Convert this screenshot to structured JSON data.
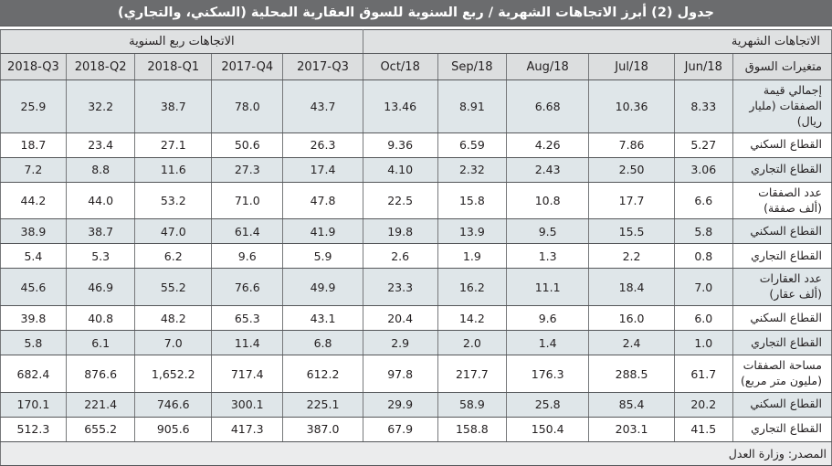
{
  "title": "جدول (2) أبرز الاتجاهات الشهرية / ربع السنوية للسوق العقارية المحلية (السكني، والتجاري)",
  "sections": {
    "monthly": "الاتجاهات الشهرية",
    "quarterly": "الاتجاهات ربع السنوية"
  },
  "row_header_label": "متغيرات السوق",
  "columns_quarterly": [
    "2018-Q3",
    "2018-Q2",
    "2018-Q1",
    "2017-Q4",
    "2017-Q3"
  ],
  "columns_monthly": [
    "Oct/18",
    "Sep/18",
    "Aug/18",
    "Jul/18",
    "Jun/18"
  ],
  "rows": [
    {
      "label": "إجمالي قيمة الصفقات (مليار ريال)",
      "quarterly": [
        "25.9",
        "32.2",
        "38.7",
        "78.0",
        "43.7"
      ],
      "monthly": [
        "13.46",
        "8.91",
        "6.68",
        "10.36",
        "8.33"
      ]
    },
    {
      "label": "القطاع السكني",
      "quarterly": [
        "18.7",
        "23.4",
        "27.1",
        "50.6",
        "26.3"
      ],
      "monthly": [
        "9.36",
        "6.59",
        "4.26",
        "7.86",
        "5.27"
      ]
    },
    {
      "label": "القطاع التجاري",
      "quarterly": [
        "7.2",
        "8.8",
        "11.6",
        "27.3",
        "17.4"
      ],
      "monthly": [
        "4.10",
        "2.32",
        "2.43",
        "2.50",
        "3.06"
      ]
    },
    {
      "label": "عدد الصفقات (ألف صفقة)",
      "quarterly": [
        "44.2",
        "44.0",
        "53.2",
        "71.0",
        "47.8"
      ],
      "monthly": [
        "22.5",
        "15.8",
        "10.8",
        "17.7",
        "6.6"
      ]
    },
    {
      "label": "القطاع السكني",
      "quarterly": [
        "38.9",
        "38.7",
        "47.0",
        "61.4",
        "41.9"
      ],
      "monthly": [
        "19.8",
        "13.9",
        "9.5",
        "15.5",
        "5.8"
      ]
    },
    {
      "label": "القطاع التجاري",
      "quarterly": [
        "5.4",
        "5.3",
        "6.2",
        "9.6",
        "5.9"
      ],
      "monthly": [
        "2.6",
        "1.9",
        "1.3",
        "2.2",
        "0.8"
      ]
    },
    {
      "label": "عدد العقارات (ألف عقار)",
      "quarterly": [
        "45.6",
        "46.9",
        "55.2",
        "76.6",
        "49.9"
      ],
      "monthly": [
        "23.3",
        "16.2",
        "11.1",
        "18.4",
        "7.0"
      ]
    },
    {
      "label": "القطاع السكني",
      "quarterly": [
        "39.8",
        "40.8",
        "48.2",
        "65.3",
        "43.1"
      ],
      "monthly": [
        "20.4",
        "14.2",
        "9.6",
        "16.0",
        "6.0"
      ]
    },
    {
      "label": "القطاع التجاري",
      "quarterly": [
        "5.8",
        "6.1",
        "7.0",
        "11.4",
        "6.8"
      ],
      "monthly": [
        "2.9",
        "2.0",
        "1.4",
        "2.4",
        "1.0"
      ]
    },
    {
      "label": "مساحة الصفقات (مليون متر مربع)",
      "quarterly": [
        "682.4",
        "876.6",
        "1,652.2",
        "717.4",
        "612.2"
      ],
      "monthly": [
        "97.8",
        "217.7",
        "176.3",
        "288.5",
        "61.7"
      ]
    },
    {
      "label": "القطاع السكني",
      "quarterly": [
        "170.1",
        "221.4",
        "746.6",
        "300.1",
        "225.1"
      ],
      "monthly": [
        "29.9",
        "58.9",
        "25.8",
        "85.4",
        "20.2"
      ]
    },
    {
      "label": "القطاع التجاري",
      "quarterly": [
        "512.3",
        "655.2",
        "905.6",
        "417.3",
        "387.0"
      ],
      "monthly": [
        "67.9",
        "158.8",
        "150.4",
        "203.1",
        "41.5"
      ]
    }
  ],
  "source": "المصدر: وزارة العدل",
  "colors": {
    "title_bar": "#6b6c6e",
    "title_text": "#ffffff",
    "header_row_bg": "#dfe1e2",
    "column_header_bg": "#dcdedf",
    "shaded_row_bg": "#dfe6e9",
    "footer_bg": "#ebeced",
    "border": "#55575a",
    "text": "#231f20"
  }
}
